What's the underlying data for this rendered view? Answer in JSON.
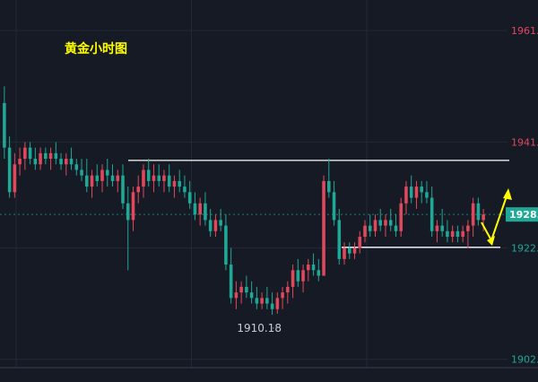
{
  "chart_data": {
    "type": "candlestick",
    "title": "黄金小时图",
    "y_ticks": [
      {
        "value": 1961,
        "label": "1961."
      },
      {
        "value": 1941,
        "label": "1941."
      },
      {
        "value": 1922,
        "label": "1922."
      },
      {
        "value": 1902,
        "label": "1902."
      }
    ],
    "ylim": [
      1900.5,
      1966.5
    ],
    "current_price": {
      "value": 1928,
      "label": "1928."
    },
    "low_annotation": {
      "value": 1910.18,
      "label": "1910.18"
    },
    "resistance_level": 1937.7,
    "support_level": 1922.1,
    "grid": true,
    "colors": {
      "background": "#161a25",
      "up": "#e0495c",
      "down": "#1fa896",
      "title": "#ffff00",
      "arrow": "#ffff00",
      "levels": "#ffffff",
      "tick_label_red": "#e0495c",
      "tick_label_green": "#1fa896",
      "current_tag": "#1fa896"
    },
    "candles": [
      [
        1948,
        1951,
        1938,
        1940
      ],
      [
        1940,
        1942,
        1931,
        1932
      ],
      [
        1932,
        1939,
        1931,
        1937
      ],
      [
        1937,
        1940,
        1935,
        1938
      ],
      [
        1938,
        1941,
        1936,
        1940
      ],
      [
        1940,
        1941,
        1937,
        1938
      ],
      [
        1938,
        1940,
        1936,
        1937
      ],
      [
        1937,
        1940,
        1936,
        1939
      ],
      [
        1939,
        1940,
        1937,
        1938
      ],
      [
        1938,
        1940,
        1936,
        1939
      ],
      [
        1939,
        1941,
        1937,
        1938
      ],
      [
        1938,
        1939,
        1936,
        1937
      ],
      [
        1937,
        1939,
        1935,
        1938
      ],
      [
        1938,
        1940,
        1936,
        1937
      ],
      [
        1937,
        1938,
        1935,
        1936
      ],
      [
        1936,
        1938,
        1934,
        1935
      ],
      [
        1935,
        1938,
        1932,
        1933
      ],
      [
        1933,
        1936,
        1931,
        1935
      ],
      [
        1935,
        1937,
        1933,
        1934
      ],
      [
        1934,
        1937,
        1932,
        1936
      ],
      [
        1936,
        1938,
        1933,
        1935
      ],
      [
        1935,
        1937,
        1933,
        1934
      ],
      [
        1934,
        1936,
        1932,
        1935
      ],
      [
        1935,
        1937,
        1929,
        1930
      ],
      [
        1930,
        1933,
        1918,
        1927
      ],
      [
        1927,
        1933,
        1925,
        1932
      ],
      [
        1932,
        1935,
        1930,
        1933
      ],
      [
        1933,
        1937,
        1931,
        1936
      ],
      [
        1936,
        1938,
        1933,
        1934
      ],
      [
        1934,
        1937,
        1932,
        1935
      ],
      [
        1935,
        1937,
        1933,
        1934
      ],
      [
        1934,
        1936,
        1932,
        1935
      ],
      [
        1935,
        1937,
        1932,
        1933
      ],
      [
        1933,
        1935,
        1931,
        1934
      ],
      [
        1934,
        1936,
        1932,
        1933
      ],
      [
        1933,
        1935,
        1931,
        1932
      ],
      [
        1932,
        1934,
        1929,
        1930
      ],
      [
        1930,
        1932,
        1927,
        1928
      ],
      [
        1928,
        1931,
        1926,
        1930
      ],
      [
        1930,
        1932,
        1926,
        1927
      ],
      [
        1927,
        1929,
        1924,
        1925
      ],
      [
        1925,
        1928,
        1924,
        1927
      ],
      [
        1927,
        1929,
        1925,
        1926
      ],
      [
        1926,
        1928,
        1918,
        1919
      ],
      [
        1919,
        1922,
        1912,
        1913
      ],
      [
        1913,
        1916,
        1911,
        1914
      ],
      [
        1914,
        1916,
        1912,
        1915
      ],
      [
        1915,
        1917,
        1913,
        1914
      ],
      [
        1914,
        1916,
        1912,
        1913
      ],
      [
        1913,
        1915,
        1911,
        1912
      ],
      [
        1912,
        1914,
        1911,
        1913
      ],
      [
        1913,
        1915,
        1911,
        1912
      ],
      [
        1912,
        1914,
        1910,
        1911
      ],
      [
        1911,
        1914,
        1910.18,
        1913
      ],
      [
        1913,
        1915,
        1911,
        1914
      ],
      [
        1914,
        1916,
        1912,
        1915
      ],
      [
        1915,
        1919,
        1913,
        1918
      ],
      [
        1918,
        1920,
        1915,
        1916
      ],
      [
        1916,
        1919,
        1914,
        1918
      ],
      [
        1918,
        1920,
        1916,
        1919
      ],
      [
        1919,
        1921,
        1917,
        1918
      ],
      [
        1918,
        1920,
        1916,
        1917
      ],
      [
        1917,
        1935,
        1917,
        1934
      ],
      [
        1934,
        1938,
        1931,
        1932
      ],
      [
        1932,
        1934,
        1926,
        1927
      ],
      [
        1927,
        1929,
        1919,
        1920
      ],
      [
        1920,
        1923,
        1919,
        1922
      ],
      [
        1922,
        1923,
        1920,
        1921
      ],
      [
        1921,
        1923,
        1920,
        1922
      ],
      [
        1922,
        1925,
        1921,
        1924
      ],
      [
        1924,
        1927,
        1923,
        1926
      ],
      [
        1926,
        1928,
        1924,
        1925
      ],
      [
        1925,
        1928,
        1924,
        1927
      ],
      [
        1927,
        1929,
        1925,
        1926
      ],
      [
        1926,
        1928,
        1924,
        1927
      ],
      [
        1927,
        1929,
        1925,
        1926
      ],
      [
        1926,
        1928,
        1924,
        1925
      ],
      [
        1925,
        1931,
        1924,
        1930
      ],
      [
        1930,
        1934,
        1928,
        1933
      ],
      [
        1933,
        1935,
        1930,
        1931
      ],
      [
        1931,
        1934,
        1929,
        1933
      ],
      [
        1933,
        1934,
        1930,
        1932
      ],
      [
        1932,
        1934,
        1930,
        1931
      ],
      [
        1931,
        1933,
        1924,
        1925
      ],
      [
        1925,
        1927,
        1923,
        1926
      ],
      [
        1926,
        1929,
        1924,
        1925
      ],
      [
        1925,
        1927,
        1923,
        1924
      ],
      [
        1924,
        1926,
        1923,
        1925
      ],
      [
        1925,
        1926,
        1923,
        1924
      ],
      [
        1924,
        1926,
        1923,
        1925
      ],
      [
        1925,
        1927,
        1922,
        1926
      ],
      [
        1926,
        1931,
        1924,
        1930
      ],
      [
        1930,
        1931,
        1926,
        1927
      ],
      [
        1927,
        1929,
        1925,
        1928
      ]
    ]
  }
}
